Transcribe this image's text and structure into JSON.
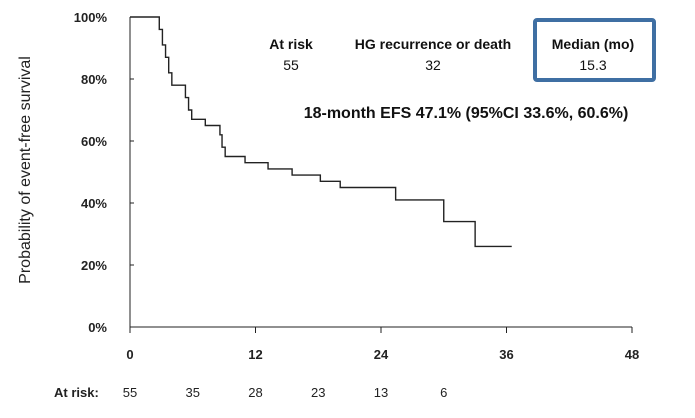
{
  "chart_data": {
    "type": "line",
    "ylabel": "Probability of event-free  survival",
    "xlim": [
      0,
      48
    ],
    "ylim": [
      0,
      100
    ],
    "x_ticks": [
      "0",
      "12",
      "24",
      "36",
      "48"
    ],
    "x_tick_values": [
      0,
      12,
      24,
      36,
      48
    ],
    "y_ticks": [
      "0%",
      "20%",
      "40%",
      "60%",
      "80%",
      "100%"
    ],
    "y_tick_values": [
      0,
      20,
      40,
      60,
      80,
      100
    ],
    "grid": false,
    "series": [
      {
        "step": true,
        "x": [
          0,
          2.8,
          3.1,
          3.4,
          3.7,
          4.0,
          5.3,
          5.6,
          5.9,
          7.2,
          8.6,
          8.8,
          9.1,
          11.0,
          13.2,
          15.5,
          18.2,
          20.1,
          25.4,
          30.0,
          33.0,
          36.5
        ],
        "y": [
          100,
          96,
          91,
          87,
          82,
          78,
          74,
          70,
          67,
          65,
          62,
          58,
          55,
          53,
          51,
          49,
          47,
          45,
          41,
          34,
          26,
          26
        ]
      }
    ],
    "stats_box": {
      "headers": [
        "At risk",
        "HG recurrence or death",
        "Median (mo)"
      ],
      "values": [
        "55",
        "32",
        "15.3"
      ]
    },
    "annotation": "18-month EFS 47.1% (95%CI 33.6%, 60.6%)",
    "at_risk": {
      "label": "At risk:",
      "values": [
        "55",
        "35",
        "28",
        "23",
        "13",
        "6"
      ]
    },
    "colors": {
      "line": "#222222",
      "highlight_box": "#3f6fa3",
      "axis": "#222222"
    }
  }
}
